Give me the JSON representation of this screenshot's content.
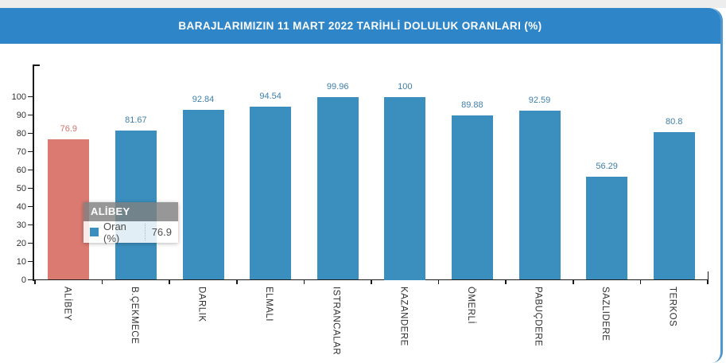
{
  "header": {
    "title": "BARAJLARIMIZIN 11 MART 2022 TARİHLİ DOLULUK ORANLARI (%)"
  },
  "colors": {
    "header_bg": "#2e86c8",
    "card_border": "#4e96cf",
    "bar": "#3b8fbf",
    "bar_highlight": "#db7a71",
    "value_label": "#3f7fa8",
    "value_label_highlight": "#d0756c",
    "axis": "#1a1a1a",
    "axis_text": "#303030"
  },
  "chart_data": {
    "type": "bar",
    "title": "BARAJLARIMIZIN 11 MART 2022 TARİHLİ DOLULUK ORANLARI (%)",
    "series_name": "Oran (%)",
    "categories": [
      "ALİBEY",
      "B.ÇEKMECE",
      "DARLIK",
      "ELMALI",
      "ISTRANCALAR",
      "KAZANDERE",
      "ÖMERLİ",
      "PABUÇDERE",
      "SAZLIDERE",
      "TERKOS"
    ],
    "values": [
      76.9,
      81.67,
      92.84,
      94.54,
      99.96,
      100,
      89.88,
      92.59,
      56.29,
      80.8
    ],
    "value_labels": [
      "76.9",
      "81.67",
      "92.84",
      "94.54",
      "99.96",
      "100",
      "89.88",
      "92.59",
      "56.29",
      "80.8"
    ],
    "highlighted_category": "ALİBEY",
    "xlabel": "",
    "ylabel": "",
    "ylim": [
      0,
      117
    ],
    "yticks": [
      0,
      10,
      20,
      30,
      40,
      50,
      60,
      70,
      80,
      90,
      100
    ],
    "grid": false,
    "legend": "none",
    "data_labels": "above-bars, colored per series"
  },
  "tooltip": {
    "title": "ALİBEY",
    "series_label": "Oran (%)",
    "value": "76.9"
  }
}
